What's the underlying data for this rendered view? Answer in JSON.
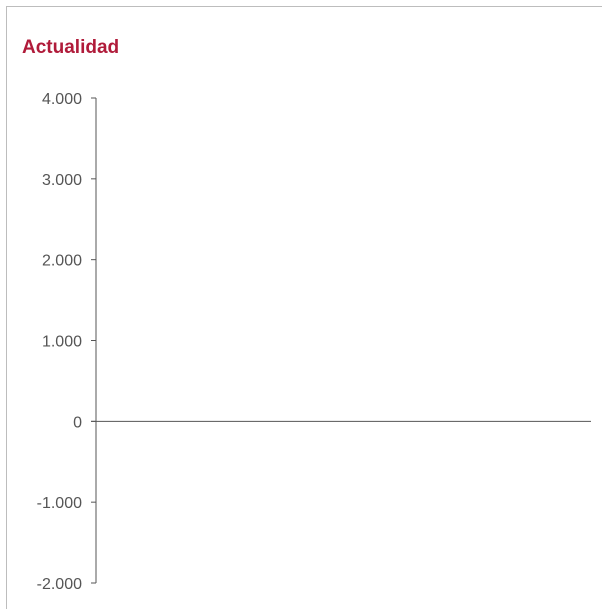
{
  "chart_data": {
    "type": "bar",
    "title": "Actualidad",
    "xlabel": "",
    "ylabel": "",
    "ylim": [
      -2000,
      4000
    ],
    "yticks": [
      {
        "value": 4000,
        "label": "4.000"
      },
      {
        "value": 3000,
        "label": "3.000"
      },
      {
        "value": 2000,
        "label": "2.000"
      },
      {
        "value": 1000,
        "label": "1.000"
      },
      {
        "value": 0,
        "label": "0"
      },
      {
        "value": -1000,
        "label": "-1.000"
      },
      {
        "value": -2000,
        "label": "-2.000"
      }
    ],
    "categories": [],
    "series": [],
    "grid": false,
    "colors": {
      "title": "#b01b3a",
      "axis": "#555555",
      "tick_label": "#555555",
      "border": "#bdbdbd"
    }
  }
}
